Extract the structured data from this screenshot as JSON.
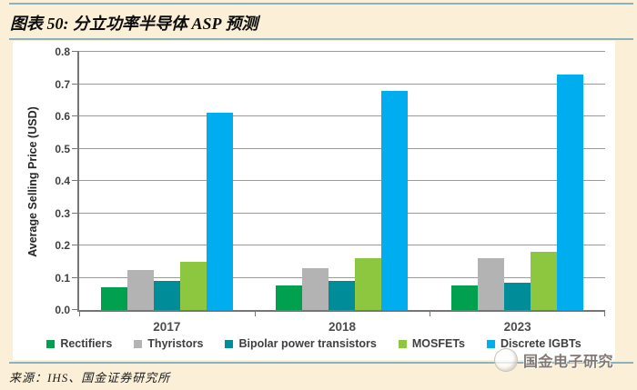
{
  "header": {
    "title": "图表 50: 分立功率半导体 ASP 预测"
  },
  "chart_data": {
    "type": "bar",
    "categories": [
      "2017",
      "2018",
      "2023"
    ],
    "series": [
      {
        "name": "Rectifiers",
        "color": "#00a14e",
        "values": [
          0.07,
          0.075,
          0.075
        ]
      },
      {
        "name": "Thyristors",
        "color": "#b3b3b3",
        "values": [
          0.125,
          0.13,
          0.16
        ]
      },
      {
        "name": "Bipolar power transistors",
        "color": "#008d9a",
        "values": [
          0.09,
          0.09,
          0.085
        ]
      },
      {
        "name": "MOSFETs",
        "color": "#8dc63f",
        "values": [
          0.15,
          0.16,
          0.18
        ]
      },
      {
        "name": "Discrete IGBTs",
        "color": "#00aeef",
        "values": [
          0.61,
          0.68,
          0.73
        ]
      }
    ],
    "title": "",
    "xlabel": "",
    "ylabel": "Average Selling Price (USD)",
    "ylim": [
      0,
      0.8
    ],
    "ytick_step": 0.1,
    "grid": true,
    "legend_position": "bottom"
  },
  "footer": {
    "source": "来源：IHS、国金证券研究所"
  },
  "watermark": {
    "text": "国金电子研究",
    "logo": "gjzq-circle-logo"
  },
  "colors": {
    "page_background": "#fbf0d7",
    "panel_background": "#ffffff",
    "separator_rule": "#8ab3c0",
    "gridline": "#9b9b9b",
    "axis": "#767676",
    "tick_label": "#404040"
  }
}
